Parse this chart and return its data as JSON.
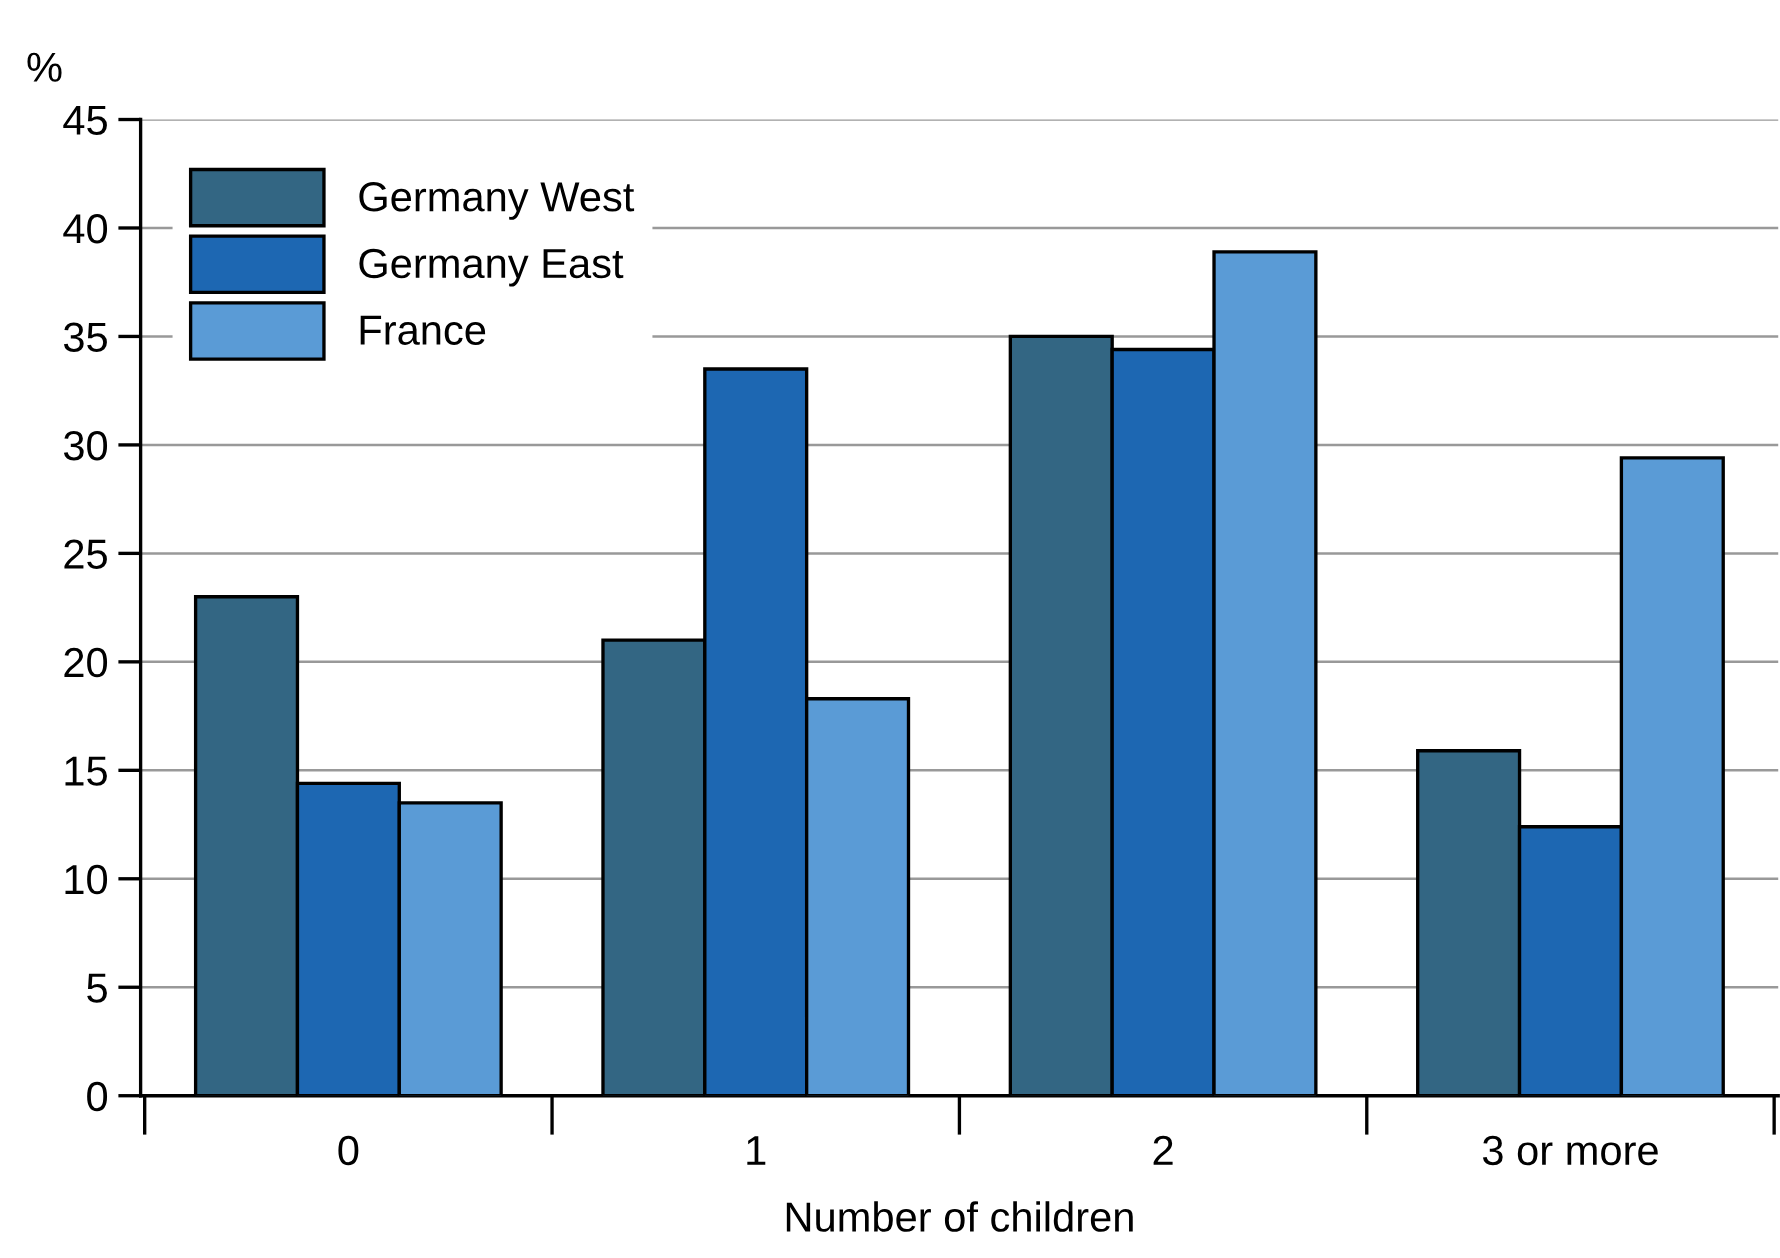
{
  "chart_data": {
    "type": "bar",
    "ylabel": "%",
    "xlabel": "Number of children",
    "categories": [
      "0",
      "1",
      "2",
      "3 or more"
    ],
    "series": [
      {
        "name": "Germany West",
        "color": "#336683",
        "values": [
          23,
          21,
          35,
          15.9
        ]
      },
      {
        "name": "Germany East",
        "color": "#1d67b2",
        "values": [
          14.4,
          33.5,
          34.4,
          12.4
        ]
      },
      {
        "name": "France",
        "color": "#5a9bd6",
        "values": [
          13.5,
          18.3,
          38.9,
          29.4
        ]
      }
    ],
    "ylim": [
      0,
      45
    ],
    "yticks": [
      0,
      5,
      10,
      15,
      20,
      25,
      30,
      35,
      40,
      45
    ],
    "grid": "y",
    "legend": "top left"
  }
}
